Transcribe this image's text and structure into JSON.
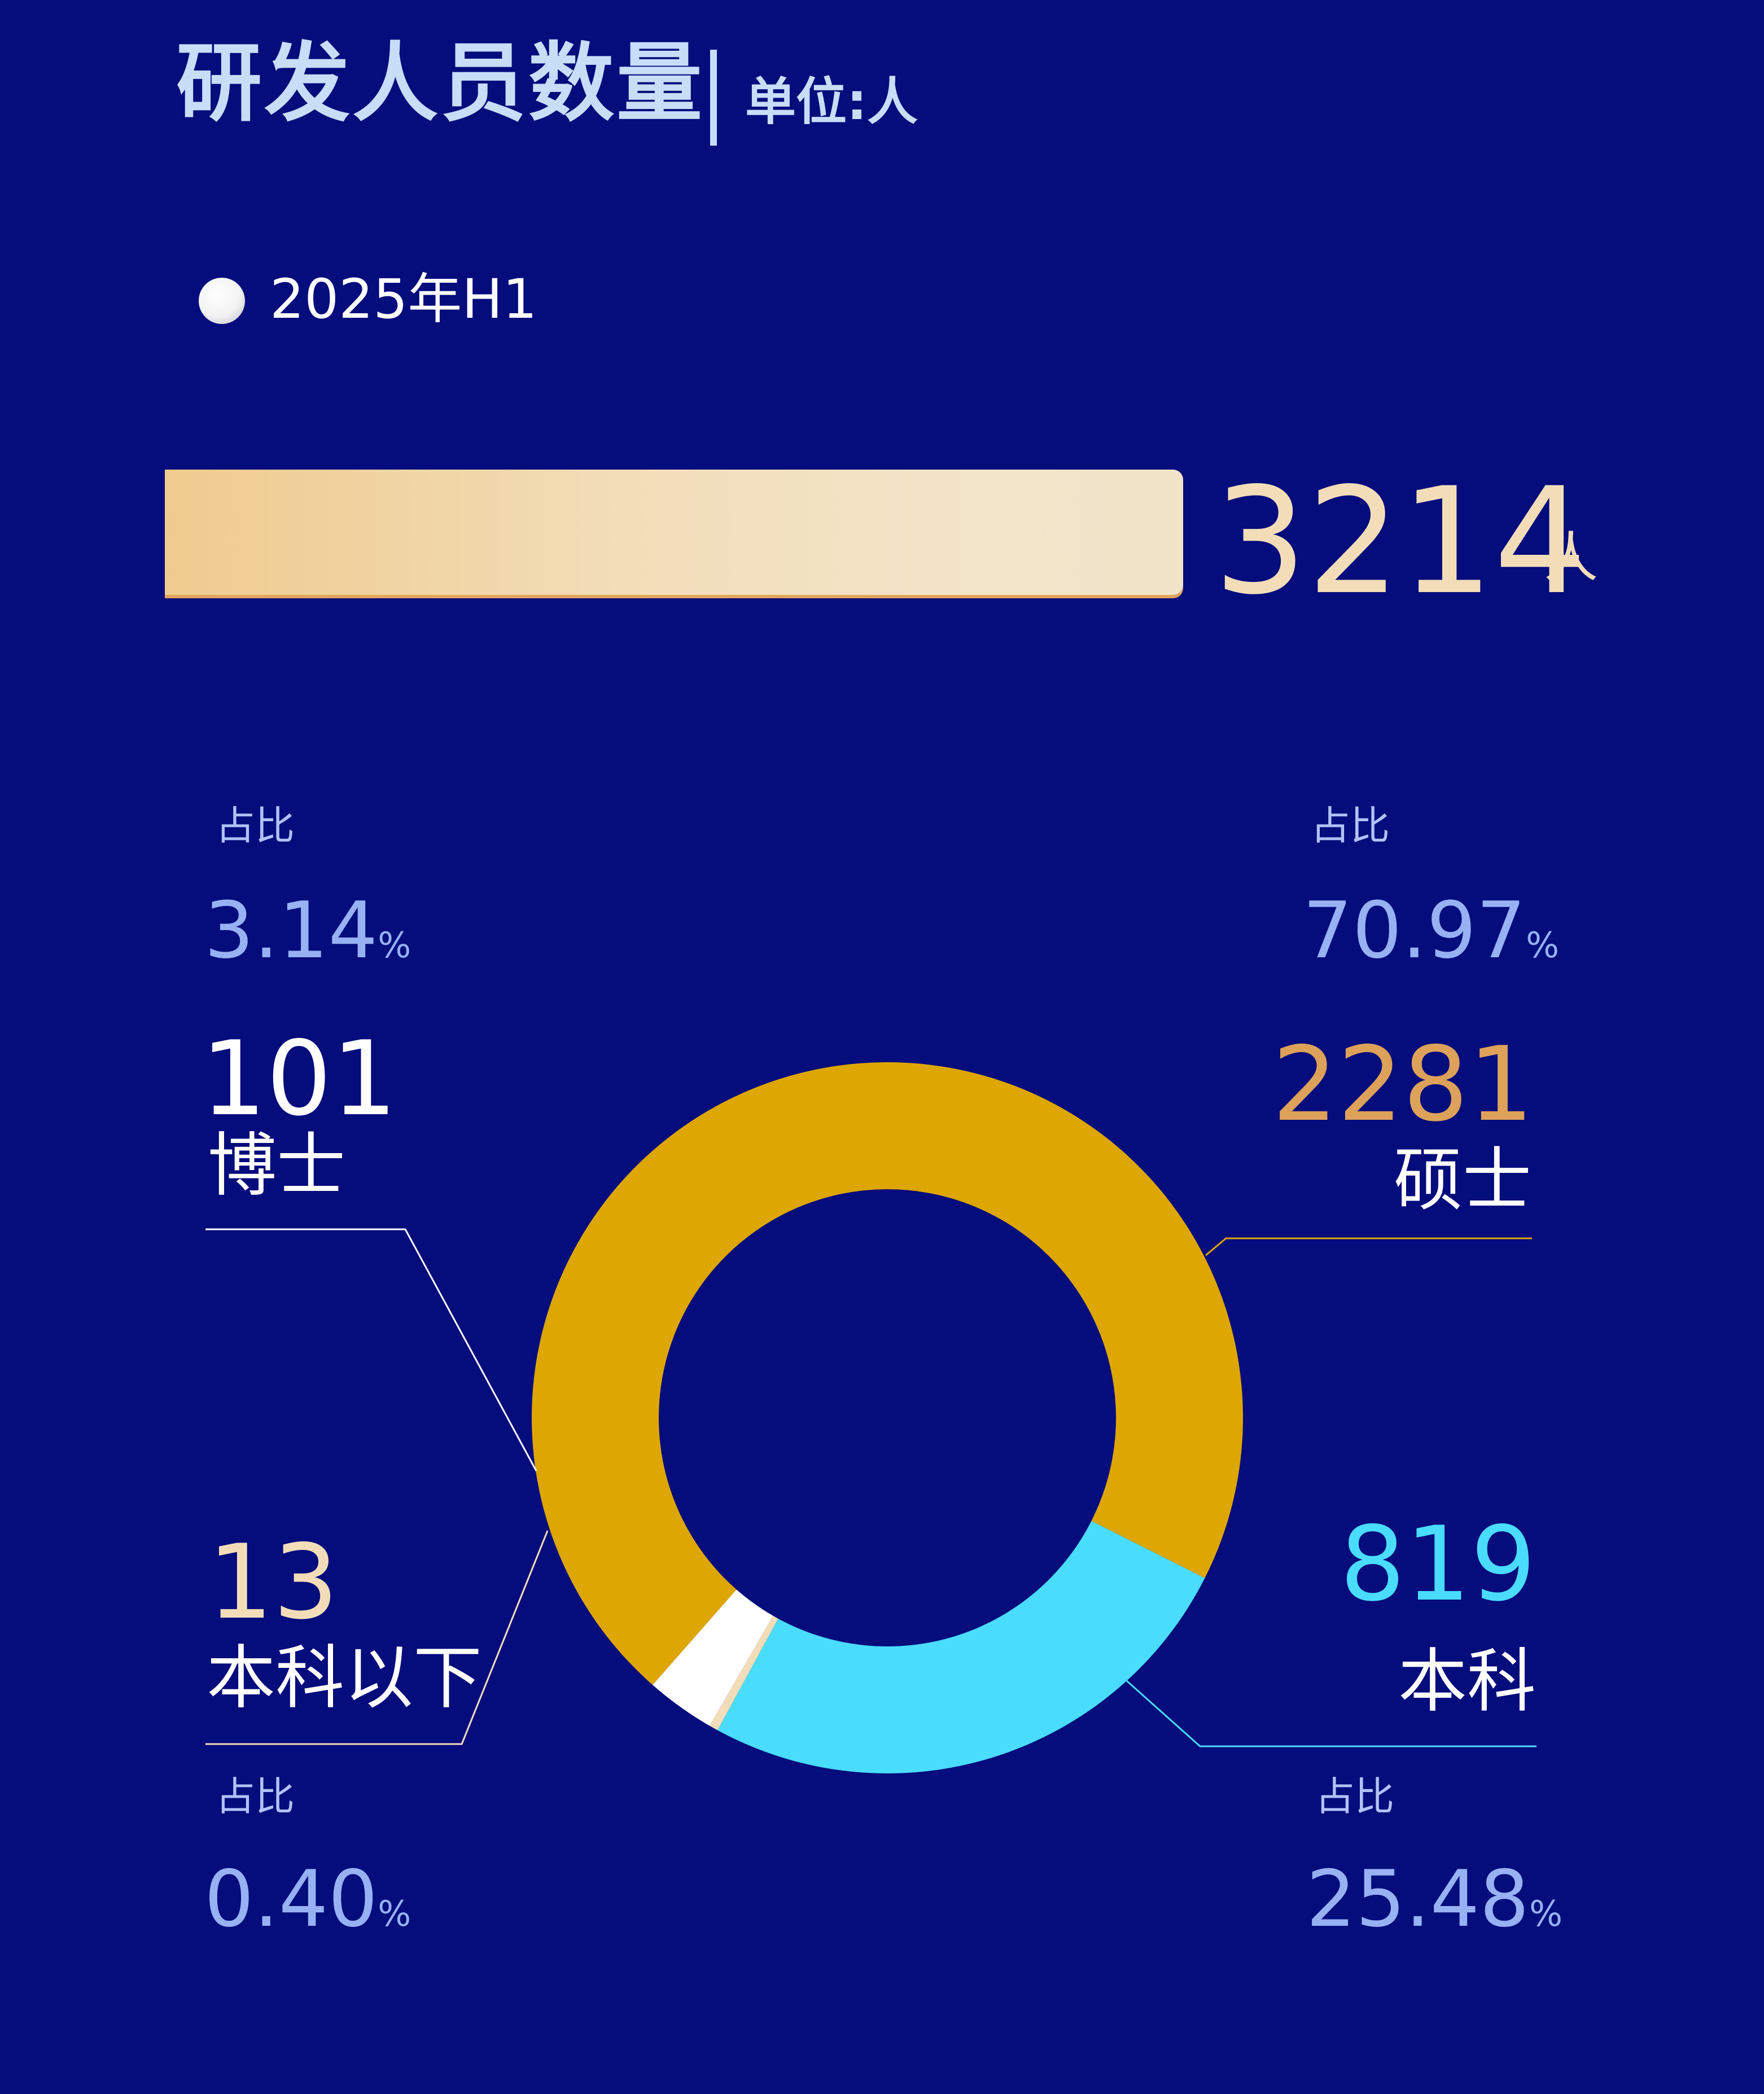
{
  "header": {
    "title": "研发人员数量",
    "unit": "单位:人"
  },
  "legend": {
    "label": "2025年H1",
    "dot_color": "#FFFFFF"
  },
  "total": {
    "value": "3214",
    "unit": "人",
    "bar_color": "#F2DDB8"
  },
  "share_label": "占比",
  "chart_data": {
    "type": "donut",
    "series_name": "2025年H1",
    "total": 3214,
    "slices": [
      {
        "name": "硕士",
        "value": 2281,
        "share": "70.97",
        "color": "#DDA600"
      },
      {
        "name": "本科",
        "value": 819,
        "share": "25.48",
        "color": "#4ADCFD"
      },
      {
        "name": "本科以下",
        "value": 13,
        "share": "0.40",
        "color": "#F2DDB8"
      },
      {
        "name": "博士",
        "value": 101,
        "share": "3.14",
        "color": "#FFFFFF"
      }
    ],
    "count_colors": {
      "博士": "#FFFFFF",
      "硕士": "#DDA15A",
      "本科": "#4ADCFD",
      "本科以下": "#F2DDB8"
    },
    "percent_sign": "%"
  }
}
